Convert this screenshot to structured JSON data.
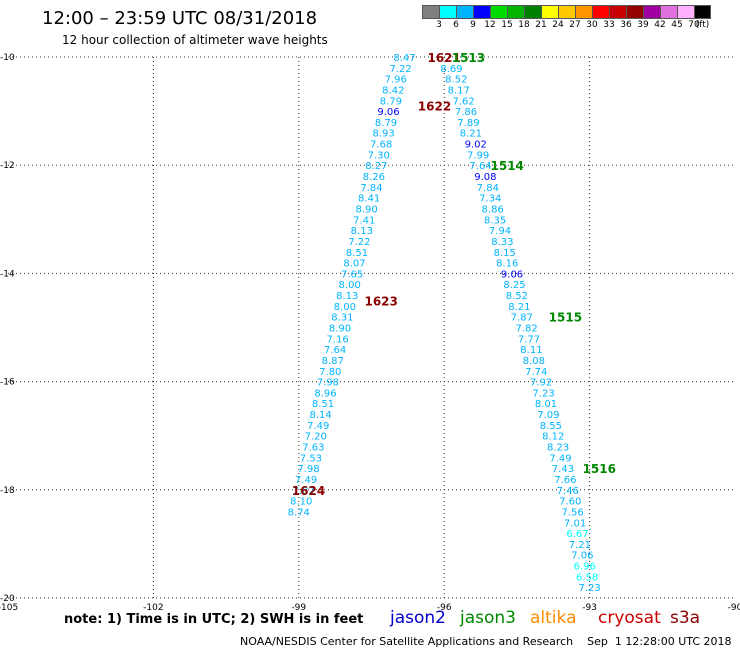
{
  "title": "12:00 – 23:59 UTC 08/31/2018",
  "subtitle": "12 hour collection of altimeter wave heights",
  "color_scale": {
    "labels": [
      "3",
      "6",
      "9",
      "12",
      "15",
      "18",
      "21",
      "24",
      "27",
      "30",
      "33",
      "36",
      "39",
      "42",
      "45",
      "70",
      "(ft)"
    ],
    "colors": [
      "#808080",
      "#00ffff",
      "#00b4ff",
      "#0000ff",
      "#00dc00",
      "#00b400",
      "#008000",
      "#ffff00",
      "#ffc800",
      "#ff9600",
      "#ff0000",
      "#c80000",
      "#960000",
      "#a000a0",
      "#e070e0",
      "#ffb0ff",
      "#000000"
    ]
  },
  "note": "note:  1) Time is in UTC; 2) SWH is in feet",
  "legend": [
    {
      "label": "jason2",
      "color": "#0000cc"
    },
    {
      "label": "jason3",
      "color": "#008800"
    },
    {
      "label": "altika",
      "color": "#ff8c00"
    },
    {
      "label": "cryosat",
      "color": "#cc0000"
    },
    {
      "label": "s3a",
      "color": "#8b0000"
    }
  ],
  "footer": "NOAA/NESDIS Center for Satellite Applications and Research    Sep  1 12:28:00 UTC 2018",
  "chart_data": {
    "type": "scatter",
    "xlim": [
      -105,
      -90
    ],
    "ylim": [
      -20,
      -10
    ],
    "x_ticks": [
      {
        "value": -105,
        "label": "-105"
      },
      {
        "value": -102,
        "label": "-102"
      },
      {
        "value": -99,
        "label": "-99"
      },
      {
        "value": -96,
        "label": "-96"
      },
      {
        "value": -93,
        "label": "-93"
      },
      {
        "value": -90,
        "label": "-90"
      }
    ],
    "y_ticks": [
      {
        "value": -10,
        "label": "-10"
      },
      {
        "value": -12,
        "label": "-12"
      },
      {
        "value": -14,
        "label": "-14"
      },
      {
        "value": -16,
        "label": "-16"
      },
      {
        "value": -18,
        "label": "-18"
      },
      {
        "value": -20,
        "label": "-20"
      }
    ],
    "grid": true,
    "series": [
      {
        "name": "s3a",
        "points": [
          {
            "lon": -96.82,
            "lat": -10.0,
            "v": "8.47",
            "color": "#00b4ff"
          },
          {
            "lon": -96.9,
            "lat": -10.2,
            "v": "7.22",
            "color": "#00b4ff"
          },
          {
            "lon": -97.0,
            "lat": -10.4,
            "v": "7.96",
            "color": "#00b4ff"
          },
          {
            "lon": -97.05,
            "lat": -10.6,
            "v": "8.42",
            "color": "#00b4ff"
          },
          {
            "lon": -97.1,
            "lat": -10.8,
            "v": "8.79",
            "color": "#00b4ff"
          },
          {
            "lon": -97.15,
            "lat": -11.0,
            "v": "9.06",
            "color": "#0000ff"
          },
          {
            "lon": -97.2,
            "lat": -11.2,
            "v": "8.79",
            "color": "#00b4ff"
          },
          {
            "lon": -97.25,
            "lat": -11.4,
            "v": "8.93",
            "color": "#00b4ff"
          },
          {
            "lon": -97.3,
            "lat": -11.6,
            "v": "7.68",
            "color": "#00b4ff"
          },
          {
            "lon": -97.35,
            "lat": -11.8,
            "v": "7.30",
            "color": "#00b4ff"
          },
          {
            "lon": -97.4,
            "lat": -12.0,
            "v": "8.27",
            "color": "#00b4ff"
          },
          {
            "lon": -97.45,
            "lat": -12.2,
            "v": "8.26",
            "color": "#00b4ff"
          },
          {
            "lon": -97.5,
            "lat": -12.4,
            "v": "7.84",
            "color": "#00b4ff"
          },
          {
            "lon": -97.55,
            "lat": -12.6,
            "v": "8.41",
            "color": "#00b4ff"
          },
          {
            "lon": -97.6,
            "lat": -12.8,
            "v": "8.90",
            "color": "#00b4ff"
          },
          {
            "lon": -97.65,
            "lat": -13.0,
            "v": "7.41",
            "color": "#00b4ff"
          },
          {
            "lon": -97.7,
            "lat": -13.2,
            "v": "8.13",
            "color": "#00b4ff"
          },
          {
            "lon": -97.75,
            "lat": -13.4,
            "v": "7.22",
            "color": "#00b4ff"
          },
          {
            "lon": -97.8,
            "lat": -13.6,
            "v": "8.51",
            "color": "#00b4ff"
          },
          {
            "lon": -97.85,
            "lat": -13.8,
            "v": "8.07",
            "color": "#00b4ff"
          },
          {
            "lon": -97.9,
            "lat": -14.0,
            "v": "7.65",
            "color": "#00b4ff"
          },
          {
            "lon": -97.95,
            "lat": -14.2,
            "v": "8.00",
            "color": "#00b4ff"
          },
          {
            "lon": -98.0,
            "lat": -14.4,
            "v": "8.13",
            "color": "#00b4ff"
          },
          {
            "lon": -98.05,
            "lat": -14.6,
            "v": "8.00",
            "color": "#00b4ff"
          },
          {
            "lon": -98.1,
            "lat": -14.8,
            "v": "8.31",
            "color": "#00b4ff"
          },
          {
            "lon": -98.15,
            "lat": -15.0,
            "v": "8.90",
            "color": "#00b4ff"
          },
          {
            "lon": -98.2,
            "lat": -15.2,
            "v": "7.16",
            "color": "#00b4ff"
          },
          {
            "lon": -98.25,
            "lat": -15.4,
            "v": "7.64",
            "color": "#00b4ff"
          },
          {
            "lon": -98.3,
            "lat": -15.6,
            "v": "8.87",
            "color": "#00b4ff"
          },
          {
            "lon": -98.35,
            "lat": -15.8,
            "v": "7.80",
            "color": "#00b4ff"
          },
          {
            "lon": -98.4,
            "lat": -16.0,
            "v": "7.98",
            "color": "#00b4ff"
          },
          {
            "lon": -98.45,
            "lat": -16.2,
            "v": "8.96",
            "color": "#00b4ff"
          },
          {
            "lon": -98.5,
            "lat": -16.4,
            "v": "8.51",
            "color": "#00b4ff"
          },
          {
            "lon": -98.55,
            "lat": -16.6,
            "v": "8.14",
            "color": "#00b4ff"
          },
          {
            "lon": -98.6,
            "lat": -16.8,
            "v": "7.49",
            "color": "#00b4ff"
          },
          {
            "lon": -98.65,
            "lat": -17.0,
            "v": "7.20",
            "color": "#00b4ff"
          },
          {
            "lon": -98.7,
            "lat": -17.2,
            "v": "7.63",
            "color": "#00b4ff"
          },
          {
            "lon": -98.75,
            "lat": -17.4,
            "v": "7.53",
            "color": "#00b4ff"
          },
          {
            "lon": -98.8,
            "lat": -17.6,
            "v": "7.98",
            "color": "#00b4ff"
          },
          {
            "lon": -98.85,
            "lat": -17.8,
            "v": "7.49",
            "color": "#00b4ff"
          },
          {
            "lon": -98.9,
            "lat": -18.0,
            "v": "7.82",
            "color": "#00b4ff"
          },
          {
            "lon": -98.95,
            "lat": -18.2,
            "v": "8.10",
            "color": "#00b4ff"
          },
          {
            "lon": -99.0,
            "lat": -18.4,
            "v": "8.74",
            "color": "#00b4ff"
          },
          {
            "lon": -95.85,
            "lat": -10.2,
            "v": "8.69",
            "color": "#00b4ff"
          },
          {
            "lon": -95.75,
            "lat": -10.4,
            "v": "8.52",
            "color": "#00b4ff"
          },
          {
            "lon": -95.7,
            "lat": -10.6,
            "v": "8.17",
            "color": "#00b4ff"
          },
          {
            "lon": -95.6,
            "lat": -10.8,
            "v": "7.62",
            "color": "#00b4ff"
          },
          {
            "lon": -95.55,
            "lat": -11.0,
            "v": "7.86",
            "color": "#00b4ff"
          },
          {
            "lon": -95.5,
            "lat": -11.2,
            "v": "7.89",
            "color": "#00b4ff"
          },
          {
            "lon": -95.45,
            "lat": -11.4,
            "v": "8.21",
            "color": "#00b4ff"
          },
          {
            "lon": -95.35,
            "lat": -11.6,
            "v": "9.02",
            "color": "#0000ff"
          },
          {
            "lon": -95.3,
            "lat": -11.8,
            "v": "7.99",
            "color": "#00b4ff"
          },
          {
            "lon": -95.25,
            "lat": -12.0,
            "v": "7.64",
            "color": "#00b4ff"
          },
          {
            "lon": -95.15,
            "lat": -12.2,
            "v": "9.08",
            "color": "#0000ff"
          },
          {
            "lon": -95.1,
            "lat": -12.4,
            "v": "7.84",
            "color": "#00b4ff"
          },
          {
            "lon": -95.05,
            "lat": -12.6,
            "v": "7.34",
            "color": "#00b4ff"
          },
          {
            "lon": -95.0,
            "lat": -12.8,
            "v": "8.86",
            "color": "#00b4ff"
          },
          {
            "lon": -94.95,
            "lat": -13.0,
            "v": "8.35",
            "color": "#00b4ff"
          },
          {
            "lon": -94.85,
            "lat": -13.2,
            "v": "7.94",
            "color": "#00b4ff"
          },
          {
            "lon": -94.8,
            "lat": -13.4,
            "v": "8.33",
            "color": "#00b4ff"
          },
          {
            "lon": -94.75,
            "lat": -13.6,
            "v": "8.15",
            "color": "#00b4ff"
          },
          {
            "lon": -94.7,
            "lat": -13.8,
            "v": "8.16",
            "color": "#00b4ff"
          },
          {
            "lon": -94.6,
            "lat": -14.0,
            "v": "9.06",
            "color": "#0000ff"
          },
          {
            "lon": -94.55,
            "lat": -14.2,
            "v": "8.25",
            "color": "#00b4ff"
          },
          {
            "lon": -94.5,
            "lat": -14.4,
            "v": "8.52",
            "color": "#00b4ff"
          },
          {
            "lon": -94.45,
            "lat": -14.6,
            "v": "8.21",
            "color": "#00b4ff"
          },
          {
            "lon": -94.4,
            "lat": -14.8,
            "v": "7.87",
            "color": "#00b4ff"
          },
          {
            "lon": -94.3,
            "lat": -15.0,
            "v": "7.82",
            "color": "#00b4ff"
          },
          {
            "lon": -94.25,
            "lat": -15.2,
            "v": "7.77",
            "color": "#00b4ff"
          },
          {
            "lon": -94.2,
            "lat": -15.4,
            "v": "8.11",
            "color": "#00b4ff"
          },
          {
            "lon": -94.15,
            "lat": -15.6,
            "v": "8.08",
            "color": "#00b4ff"
          },
          {
            "lon": -94.1,
            "lat": -15.8,
            "v": "7.74",
            "color": "#00b4ff"
          },
          {
            "lon": -94.0,
            "lat": -16.0,
            "v": "7.92",
            "color": "#00b4ff"
          },
          {
            "lon": -93.95,
            "lat": -16.2,
            "v": "7.23",
            "color": "#00b4ff"
          },
          {
            "lon": -93.9,
            "lat": -16.4,
            "v": "8.01",
            "color": "#00b4ff"
          },
          {
            "lon": -93.85,
            "lat": -16.6,
            "v": "7.09",
            "color": "#00b4ff"
          },
          {
            "lon": -93.8,
            "lat": -16.8,
            "v": "8.55",
            "color": "#00b4ff"
          },
          {
            "lon": -93.75,
            "lat": -17.0,
            "v": "8.12",
            "color": "#00b4ff"
          },
          {
            "lon": -93.65,
            "lat": -17.2,
            "v": "8.23",
            "color": "#00b4ff"
          },
          {
            "lon": -93.6,
            "lat": -17.4,
            "v": "7.49",
            "color": "#00b4ff"
          },
          {
            "lon": -93.55,
            "lat": -17.6,
            "v": "7.43",
            "color": "#00b4ff"
          },
          {
            "lon": -93.5,
            "lat": -17.8,
            "v": "7.66",
            "color": "#00b4ff"
          },
          {
            "lon": -93.45,
            "lat": -18.0,
            "v": "7.46",
            "color": "#00b4ff"
          },
          {
            "lon": -93.4,
            "lat": -18.2,
            "v": "7.60",
            "color": "#00b4ff"
          },
          {
            "lon": -93.35,
            "lat": -18.4,
            "v": "7.56",
            "color": "#00b4ff"
          },
          {
            "lon": -93.3,
            "lat": -18.6,
            "v": "7.01",
            "color": "#00b4ff"
          },
          {
            "lon": -93.25,
            "lat": -18.8,
            "v": "6.67",
            "color": "#00ffff"
          },
          {
            "lon": -93.2,
            "lat": -19.0,
            "v": "7.21",
            "color": "#00b4ff"
          },
          {
            "lon": -93.15,
            "lat": -19.2,
            "v": "7.06",
            "color": "#00b4ff"
          },
          {
            "lon": -93.1,
            "lat": -19.4,
            "v": "6.96",
            "color": "#00ffff"
          },
          {
            "lon": -93.05,
            "lat": -19.6,
            "v": "6.58",
            "color": "#00ffff"
          },
          {
            "lon": -93.0,
            "lat": -19.8,
            "v": "7.23",
            "color": "#00b4ff"
          }
        ]
      }
    ],
    "time_labels": [
      {
        "lon": -96.0,
        "lat": -10.0,
        "text": "1621",
        "color": "#8b0000"
      },
      {
        "lon": -95.5,
        "lat": -10.0,
        "text": "1513",
        "color": "#008800"
      },
      {
        "lon": -96.2,
        "lat": -10.9,
        "text": "1622",
        "color": "#8b0000"
      },
      {
        "lon": -94.7,
        "lat": -12.0,
        "text": "1514",
        "color": "#008800"
      },
      {
        "lon": -97.3,
        "lat": -14.5,
        "text": "1623",
        "color": "#8b0000"
      },
      {
        "lon": -93.5,
        "lat": -14.8,
        "text": "1515",
        "color": "#008800"
      },
      {
        "lon": -98.8,
        "lat": -18.0,
        "text": "1624",
        "color": "#8b0000"
      },
      {
        "lon": -92.8,
        "lat": -17.6,
        "text": "1516",
        "color": "#008800"
      }
    ]
  }
}
